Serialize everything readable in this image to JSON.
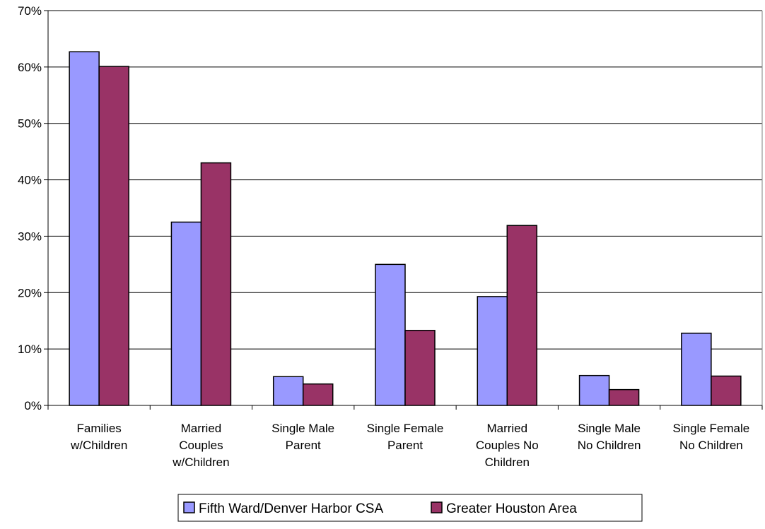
{
  "chart_data": {
    "type": "bar",
    "categories": [
      [
        "Families",
        "w/Children"
      ],
      [
        "Married",
        "Couples",
        "w/Children"
      ],
      [
        "Single Male",
        "Parent"
      ],
      [
        "Single Female",
        "Parent"
      ],
      [
        "Married",
        "Couples No",
        "Children"
      ],
      [
        "Single Male",
        "No Children"
      ],
      [
        "Single Female",
        "No Children"
      ]
    ],
    "series": [
      {
        "name": "Fifth Ward/Denver Harbor CSA",
        "color": "#9999ff",
        "values": [
          0.627,
          0.325,
          0.051,
          0.25,
          0.193,
          0.053,
          0.128
        ]
      },
      {
        "name": "Greater Houston Area",
        "color": "#993366",
        "values": [
          0.601,
          0.43,
          0.038,
          0.133,
          0.319,
          0.028,
          0.052
        ]
      }
    ],
    "ylim": [
      0,
      0.7
    ],
    "yticks": [
      0,
      0.1,
      0.2,
      0.3,
      0.4,
      0.5,
      0.6,
      0.7
    ],
    "ytick_labels": [
      "0%",
      "10%",
      "20%",
      "30%",
      "40%",
      "50%",
      "60%",
      "70%"
    ],
    "grid": true,
    "legend_position": "bottom"
  }
}
